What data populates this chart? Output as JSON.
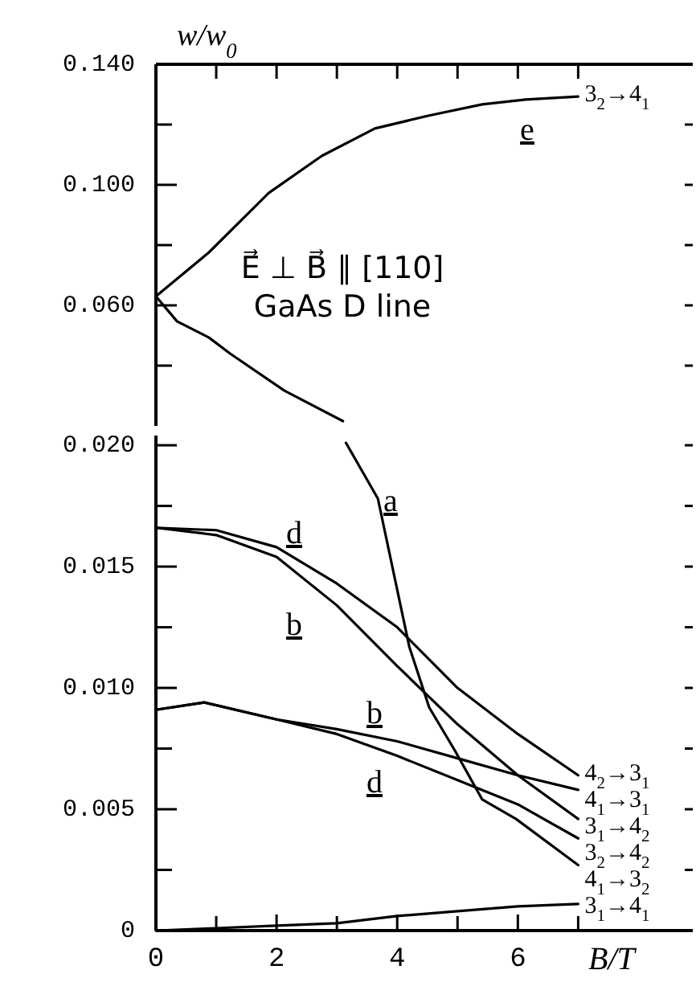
{
  "chart_data": [
    {
      "type": "line",
      "ylabel": "w/w$_{0}$",
      "tick_labels": "y",
      "xlim": [
        0,
        8.9
      ],
      "xticks": [
        {
          "value": 0,
          "label": null
        },
        {
          "value": 1,
          "label": null
        },
        {
          "value": 2,
          "label": null
        },
        {
          "value": 3,
          "label": null
        },
        {
          "value": 4,
          "label": null
        },
        {
          "value": 5,
          "label": null
        },
        {
          "value": 6,
          "label": null
        },
        {
          "value": 7,
          "label": null
        }
      ],
      "ylim": [
        0.02,
        0.14
      ],
      "yticks": [
        {
          "value": 0.04,
          "label": null
        },
        {
          "value": 0.06,
          "label": "0.060"
        },
        {
          "value": 0.08,
          "label": null
        },
        {
          "value": 0.1,
          "label": "0.100"
        },
        {
          "value": 0.12,
          "label": null
        },
        {
          "value": 0.14,
          "label": "0.140"
        }
      ],
      "series": [
        {
          "color": "#000000",
          "x": [
            0,
            0.35,
            0.88,
            1.23,
            2.13,
            3.1
          ],
          "values": [
            0.063,
            0.0547,
            0.0493,
            0.044,
            0.0317,
            0.0216
          ]
        },
        {
          "name": "3$_{2}$→4$_{1}$",
          "color": "#000000",
          "x": [
            0,
            0.88,
            1.87,
            2.75,
            3.63,
            4.53,
            5.41,
            6.13,
            7
          ],
          "values": [
            0.063,
            0.0776,
            0.0973,
            0.1096,
            0.1187,
            0.123,
            0.1267,
            0.1283,
            0.1293
          ]
        }
      ],
      "legend": "right",
      "annotations": [
        "E⃗ ⊥ B⃗ ∥ [110]",
        "GaAs D line",
        "e"
      ]
    },
    {
      "type": "line",
      "xlabel": "B/T",
      "xlim": [
        0,
        8.9
      ],
      "xticks": [
        0,
        {
          "value": 1,
          "label": null
        },
        2,
        {
          "value": 3,
          "label": null
        },
        4,
        {
          "value": 5,
          "label": null
        },
        6,
        {
          "value": 7,
          "label": null
        }
      ],
      "ylim": [
        0,
        0.0204
      ],
      "yticks": [
        0,
        {
          "value": 0.0025,
          "label": null
        },
        {
          "value": 0.005,
          "label": "0.005"
        },
        {
          "value": 0.0075,
          "label": null
        },
        {
          "value": 0.01,
          "label": "0.010"
        },
        {
          "value": 0.0125,
          "label": null
        },
        {
          "value": 0.015,
          "label": "0.015"
        },
        {
          "value": 0.0175,
          "label": null
        },
        {
          "value": 0.02,
          "label": "0.020"
        }
      ],
      "series": [
        {
          "name": "4$_{2}$→3$_{1}$",
          "color": "#000000",
          "x": [
            0,
            1,
            2,
            3,
            4,
            5,
            6,
            7
          ],
          "values": [
            0.0166,
            0.0165,
            0.0158,
            0.0143,
            0.0125,
            0.01,
            0.0081,
            0.0064
          ]
        },
        {
          "name": "4$_{1}$→3$_{1}$",
          "color": "#000000",
          "x": [
            0,
            0.8,
            2,
            3,
            4,
            5,
            6,
            7
          ],
          "values": [
            0.0091,
            0.0094,
            0.0087,
            0.0083,
            0.0078,
            0.0071,
            0.0064,
            0.0058
          ]
        },
        {
          "name": "3$_{1}$→4$_{2}$",
          "color": "#000000",
          "x": [
            0,
            1,
            2,
            3,
            4,
            5,
            6,
            7
          ],
          "values": [
            0.0166,
            0.0163,
            0.0154,
            0.0134,
            0.0109,
            0.0085,
            0.0064,
            0.0046
          ]
        },
        {
          "name": "3$_{2}$→4$_{2}$",
          "color": "#000000",
          "x": [
            0,
            0.8,
            2,
            3,
            4,
            5,
            6,
            7
          ],
          "values": [
            0.0091,
            0.0094,
            0.0087,
            0.0081,
            0.0072,
            0.0062,
            0.0052,
            0.0038
          ]
        },
        {
          "name": "4$_{1}$→3$_{2}$",
          "color": "#000000",
          "x": [
            3.15,
            3.68,
            4.2,
            4.53,
            4.96,
            5.41,
            5.97,
            7
          ],
          "values": [
            0.0201,
            0.0178,
            0.0117,
            0.0092,
            0.0074,
            0.0054,
            0.0046,
            0.0027
          ]
        },
        {
          "name": "3$_{1}$→4$_{1}$",
          "color": "#000000",
          "x": [
            0,
            1,
            2,
            3,
            4,
            5,
            6,
            7
          ],
          "values": [
            0,
            0.0001,
            0.0002,
            0.0003,
            0.0006,
            0.0008,
            0.001,
            0.0011
          ]
        }
      ],
      "legend": "right",
      "annotations": [
        "a",
        "d",
        "b",
        "b",
        "d"
      ]
    }
  ]
}
